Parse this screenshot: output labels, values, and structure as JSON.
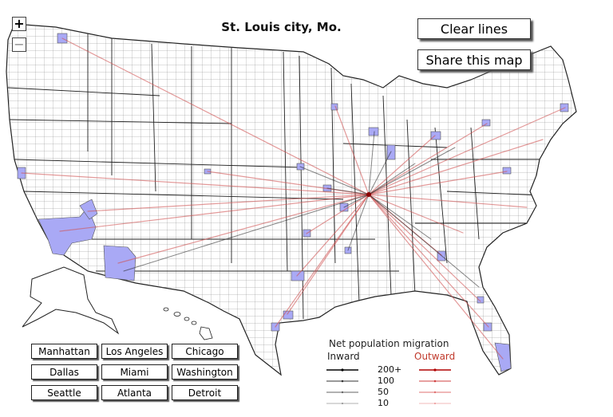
{
  "map": {
    "title": "St. Louis city, Mo.",
    "origin": "St. Louis city, Mo.",
    "colors": {
      "inward": "#000000",
      "outward": "#cc2222",
      "county_highlight": "#a9a9f5",
      "land": "#ffffff",
      "borders": "#333333"
    }
  },
  "controls": {
    "zoom_in": "+",
    "zoom_out": "−",
    "clear_lines": "Clear lines",
    "share_map": "Share this map"
  },
  "cities": [
    "Manhattan",
    "Los Angeles",
    "Chicago",
    "Dallas",
    "Miami",
    "Washington",
    "Seattle",
    "Atlanta",
    "Detroit"
  ],
  "legend": {
    "title": "Net population migration",
    "inward_label": "Inward",
    "outward_label": "Outward",
    "levels": [
      "200+",
      "100",
      "50",
      "10"
    ]
  }
}
